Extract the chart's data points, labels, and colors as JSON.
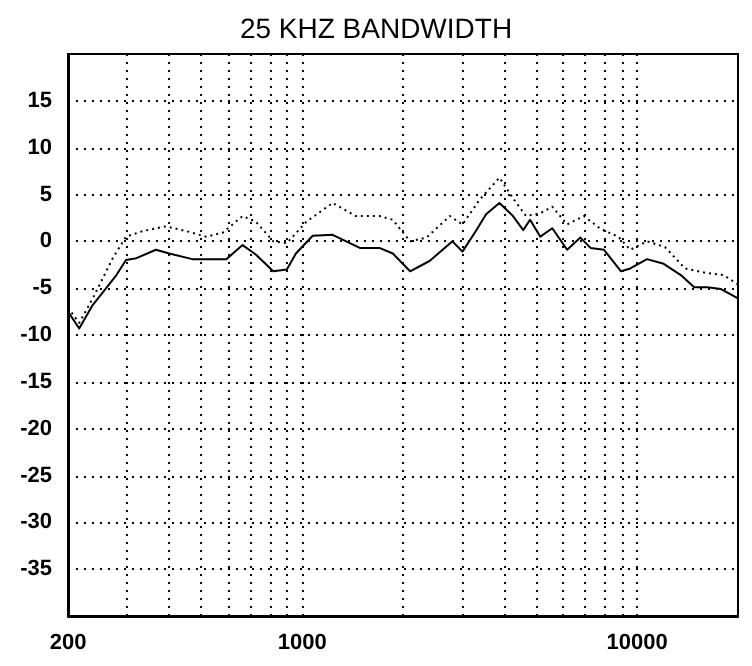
{
  "chart_data": {
    "type": "line",
    "title": "25 KHZ BANDWIDTH",
    "log": "x",
    "grid": true,
    "marker": "none",
    "xlim": [
      200,
      20000
    ],
    "xticks": [
      200,
      {
        "value": 300,
        "label": null
      },
      {
        "value": 400,
        "label": null
      },
      {
        "value": 500,
        "label": null
      },
      {
        "value": 600,
        "label": null
      },
      {
        "value": 700,
        "label": null
      },
      {
        "value": 800,
        "label": null
      },
      {
        "value": 900,
        "label": null
      },
      1000,
      {
        "value": 2000,
        "label": null
      },
      {
        "value": 3000,
        "label": null
      },
      {
        "value": 4000,
        "label": null
      },
      {
        "value": 5000,
        "label": null
      },
      {
        "value": 6000,
        "label": null
      },
      {
        "value": 7000,
        "label": null
      },
      {
        "value": 8000,
        "label": null
      },
      {
        "value": 9000,
        "label": null
      },
      10000
    ],
    "ylim": [
      -40,
      20
    ],
    "yticks": [
      -35,
      -30,
      -25,
      -20,
      -15,
      -10,
      -5,
      0,
      5,
      10,
      15
    ],
    "series": [
      {
        "color": "#000000",
        "line_style": "solid",
        "x": [
          200,
          216,
          237,
          279,
          298,
          320,
          366,
          401,
          470,
          594,
          664,
          727,
          820,
          900,
          958,
          1075,
          1233,
          1486,
          1700,
          1865,
          2100,
          2400,
          2810,
          3010,
          3300,
          3540,
          3880,
          4260,
          4570,
          4790,
          5140,
          5580,
          6180,
          6770,
          7260,
          7960,
          8950,
          9540,
          10700,
          12000,
          13500,
          14800,
          16200,
          17800,
          20000
        ],
        "values": [
          -7.5,
          -9.3,
          -6.8,
          -3.6,
          -2,
          -1.8,
          -0.9,
          -1.3,
          -1.9,
          -1.9,
          -0.4,
          -1.4,
          -3.2,
          -3,
          -1.3,
          0.6,
          0.7,
          -0.7,
          -0.7,
          -1.3,
          -3.2,
          -2.1,
          0,
          -1.1,
          1.1,
          2.9,
          4.1,
          2.7,
          1.2,
          2.3,
          0.5,
          1.4,
          -0.9,
          0.4,
          -0.7,
          -0.9,
          -3.2,
          -2.9,
          -1.9,
          -2.4,
          -3.6,
          -4.9,
          -4.9,
          -5.1,
          -6.1
        ]
      },
      {
        "color": "#000000",
        "line_style": "dotted",
        "x": [
          200,
          216,
          237,
          272,
          298,
          335,
          392,
          450,
          517,
          578,
          664,
          727,
          820,
          900,
          1030,
          1233,
          1446,
          1700,
          1865,
          2100,
          2350,
          2760,
          3010,
          3380,
          3880,
          4260,
          4660,
          5140,
          5580,
          6180,
          6930,
          7800,
          8780,
          9540,
          10700,
          12100,
          13900,
          16200,
          18100,
          20000
        ],
        "values": [
          -7.1,
          -8.7,
          -6.1,
          -1.8,
          0.5,
          1.1,
          1.6,
          1.1,
          0.5,
          0.9,
          2.7,
          2.1,
          0,
          -0.2,
          2.1,
          4.1,
          2.7,
          2.7,
          2.3,
          0,
          0.4,
          2.7,
          1.8,
          4.4,
          6.8,
          4.6,
          2.7,
          3,
          3.7,
          1.8,
          2.7,
          1.3,
          0.5,
          -0.9,
          0,
          -0.6,
          -2.9,
          -3.4,
          -3.6,
          -4.6
        ]
      }
    ]
  }
}
